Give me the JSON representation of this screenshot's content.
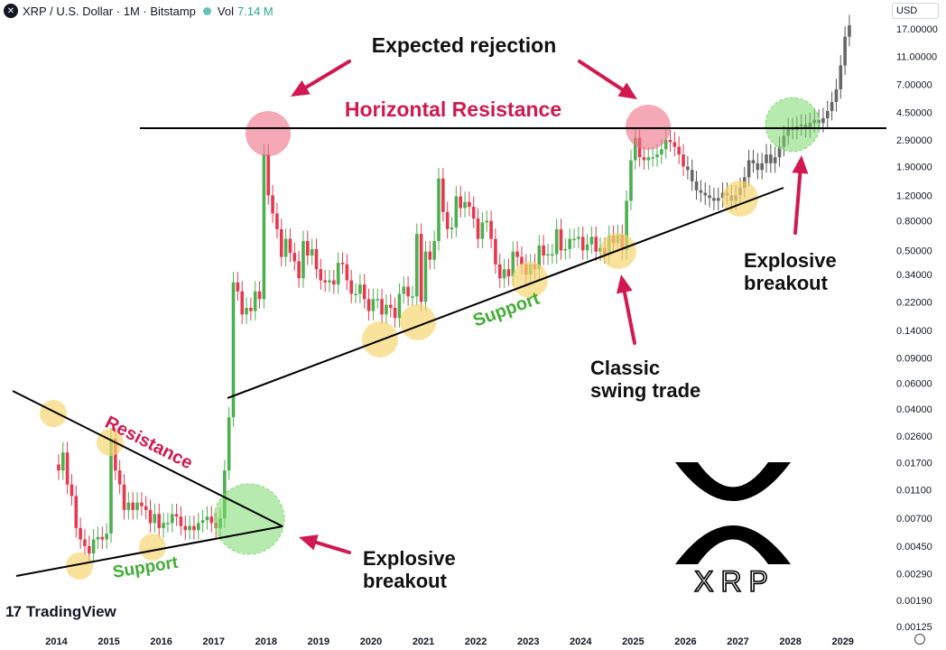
{
  "header": {
    "symbol_icon": "xrp-logo-icon",
    "title": "XRP / U.S. Dollar · 1M · Bitstamp",
    "vol_label": "Vol",
    "vol_value": "7.14 M"
  },
  "currency": "USD",
  "branding": {
    "name": "TradingView",
    "watermark": "XRP"
  },
  "colors": {
    "up": "#4caf50",
    "down": "#e53950",
    "annotation_red": "#d0194f",
    "annotation_green": "#3fae33",
    "highlight_yellow": "#f5d572",
    "highlight_pink": "#ee6e85",
    "highlight_green": "#7cd86c"
  },
  "chart_data": {
    "type": "candlestick",
    "y_scale": "log",
    "y_ticks": [
      "17.00000",
      "11.00000",
      "7.00000",
      "4.50000",
      "2.90000",
      "1.90000",
      "1.20000",
      "0.80000",
      "0.50000",
      "0.34000",
      "0.22000",
      "0.14000",
      "0.09000",
      "0.06000",
      "0.04000",
      "0.02600",
      "0.01700",
      "0.01100",
      "0.00700",
      "0.00450",
      "0.00290",
      "0.00190",
      "0.00125"
    ],
    "x_ticks": [
      "2014",
      "2015",
      "2016",
      "2017",
      "2018",
      "2019",
      "2020",
      "2021",
      "2022",
      "2023",
      "2024",
      "2025",
      "2026",
      "2027",
      "2028",
      "2029"
    ],
    "monthly_close_approx": {
      "2014": [
        0.015,
        0.02,
        0.012,
        0.01,
        0.006,
        0.005,
        0.0045,
        0.004,
        0.005,
        0.0052,
        0.005,
        0.0055
      ],
      "2015": [
        0.025,
        0.015,
        0.012,
        0.008,
        0.009,
        0.008,
        0.009,
        0.0085,
        0.008,
        0.0065,
        0.0075,
        0.006
      ],
      "2016": [
        0.0065,
        0.0065,
        0.0075,
        0.0072,
        0.0062,
        0.0058,
        0.0062,
        0.0058,
        0.0065,
        0.0068,
        0.0072,
        0.0065
      ],
      "2017": [
        0.006,
        0.007,
        0.015,
        0.035,
        0.3,
        0.26,
        0.18,
        0.2,
        0.19,
        0.26,
        0.23,
        2.3
      ],
      "2018": [
        1.2,
        0.9,
        0.7,
        0.45,
        0.6,
        0.48,
        0.42,
        0.32,
        0.58,
        0.46,
        0.51,
        0.37
      ],
      "2019": [
        0.31,
        0.3,
        0.31,
        0.29,
        0.41,
        0.4,
        0.31,
        0.25,
        0.25,
        0.29,
        0.23,
        0.19
      ],
      "2020": [
        0.23,
        0.23,
        0.18,
        0.21,
        0.2,
        0.17,
        0.25,
        0.28,
        0.24,
        0.24,
        0.65,
        0.22
      ],
      "2021": [
        0.49,
        0.43,
        0.58,
        1.57,
        0.92,
        0.7,
        0.72,
        1.18,
        0.98,
        1.08,
        1.0,
        0.83
      ],
      "2022": [
        0.6,
        0.78,
        0.8,
        0.6,
        0.4,
        0.32,
        0.37,
        0.33,
        0.49,
        0.45,
        0.4,
        0.34
      ],
      "2023": [
        0.4,
        0.37,
        0.54,
        0.46,
        0.47,
        0.47,
        0.7,
        0.5,
        0.51,
        0.6,
        0.6,
        0.62
      ],
      "2024": [
        0.5,
        0.55,
        0.62,
        0.49,
        0.52,
        0.47,
        0.63,
        0.56,
        0.64,
        0.5,
        1.1,
        2.1
      ],
      "2025": [
        3.0,
        2.2,
        2.1,
        2.2,
        2.2,
        2.3,
        2.5,
        2.9,
        2.8,
        2.6,
        2.3,
        1.9
      ]
    },
    "projection_2026_2028": [
      1.8,
      1.5,
      1.3,
      1.25,
      1.2,
      1.15,
      1.1,
      1.15,
      1.25,
      1.2,
      1.1,
      1.2,
      1.35,
      1.6,
      2.1,
      2.0,
      1.8,
      2.0,
      2.3,
      2.0,
      2.2,
      2.6,
      3.1,
      3.5,
      3.4,
      3.6,
      3.7,
      3.5,
      3.8,
      4.0,
      3.8,
      4.1,
      4.6,
      5.3,
      6.5,
      9.5,
      15.0,
      18.0
    ]
  },
  "annotations": {
    "expected_rejection": "Expected rejection",
    "horizontal_resistance": "Horizontal Resistance",
    "resistance": "Resistance",
    "support_left": "Support",
    "support_right": "Support",
    "classic_swing_line1": "Classic",
    "classic_swing_line2": "swing trade",
    "explosive_right_line1": "Explosive",
    "explosive_right_line2": "breakout",
    "explosive_bottom_line1": "Explosive",
    "explosive_bottom_line2": "breakout"
  }
}
